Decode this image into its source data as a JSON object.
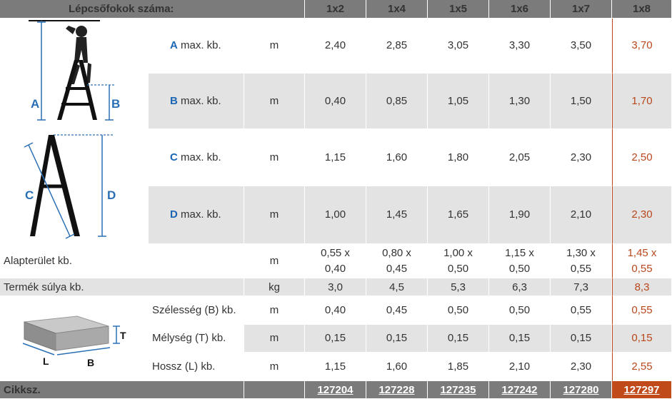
{
  "header": {
    "title": "Lépcsőfokok száma:",
    "columns": [
      "1x2",
      "1x4",
      "1x5",
      "1x6",
      "1x7",
      "1x8"
    ]
  },
  "rows": {
    "a": {
      "letter": "A",
      "label": " max. kb.",
      "unit": "m",
      "values": [
        "2,40",
        "2,85",
        "3,05",
        "3,30",
        "3,50",
        "3,70"
      ]
    },
    "b": {
      "letter": "B",
      "label": " max. kb.",
      "unit": "m",
      "values": [
        "0,40",
        "0,85",
        "1,05",
        "1,30",
        "1,50",
        "1,70"
      ]
    },
    "c": {
      "letter": "C",
      "label": " max. kb.",
      "unit": "m",
      "values": [
        "1,15",
        "1,60",
        "1,80",
        "2,05",
        "2,30",
        "2,50"
      ]
    },
    "d": {
      "letter": "D",
      "label": " max. kb.",
      "unit": "m",
      "values": [
        "1,00",
        "1,45",
        "1,65",
        "1,90",
        "2,10",
        "2,30"
      ]
    },
    "area": {
      "label": "Alapterület kb.",
      "unit": "m",
      "values_top": [
        "0,55 x",
        "0,80 x",
        "1,00 x",
        "1,15 x",
        "1,30 x",
        "1,45 x"
      ],
      "values_bottom": [
        "0,40",
        "0,45",
        "0,50",
        "0,50",
        "0,55",
        "0,55"
      ]
    },
    "weight": {
      "label": "Termék súlya kb.",
      "unit": "kg",
      "values": [
        "3,0",
        "4,5",
        "5,3",
        "6,3",
        "7,3",
        "8,3"
      ]
    },
    "width": {
      "label": "Szélesség (B) kb.",
      "unit": "m",
      "values": [
        "0,40",
        "0,45",
        "0,50",
        "0,50",
        "0,55",
        "0,55"
      ]
    },
    "depth": {
      "label": "Mélység (T) kb.",
      "unit": "m",
      "values": [
        "0,15",
        "0,15",
        "0,15",
        "0,15",
        "0,15",
        "0,15"
      ]
    },
    "length": {
      "label": "Hossz (L) kb.",
      "unit": "m",
      "values": [
        "1,15",
        "1,60",
        "1,85",
        "2,10",
        "2,30",
        "2,55"
      ]
    }
  },
  "footer": {
    "label": "Cikksz.",
    "codes": [
      "127204",
      "127228",
      "127235",
      "127242",
      "127280",
      "127297"
    ]
  },
  "diagram_labels": {
    "a": "A",
    "b": "B",
    "c": "C",
    "d": "D",
    "t": "T",
    "l": "L",
    "bb": "B"
  },
  "colors": {
    "header_bg": "#7b7b7b",
    "stripe_bg": "#e3e3e3",
    "highlight": "#b9471c",
    "letter_blue": "#1a66b3"
  }
}
